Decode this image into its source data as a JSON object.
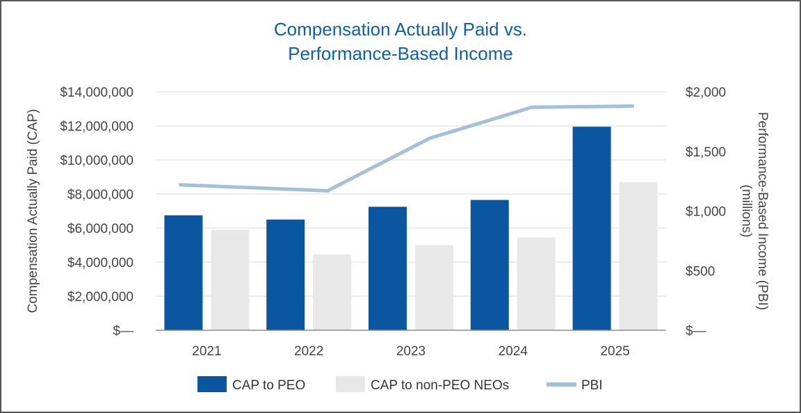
{
  "chart_data": {
    "type": "bar",
    "title_lines": [
      "Compensation Actually Paid vs.",
      "Performance-Based Income"
    ],
    "categories": [
      "2021",
      "2022",
      "2023",
      "2024",
      "2025"
    ],
    "series": [
      {
        "name": "CAP to PEO",
        "type": "bar",
        "axis": "left",
        "color": "#0a56a0",
        "values": [
          6750000,
          6500000,
          7250000,
          7650000,
          11950000
        ]
      },
      {
        "name": "CAP to non-PEO NEOs",
        "type": "bar",
        "axis": "left",
        "color": "#e8e8e8",
        "values": [
          5900000,
          4450000,
          5000000,
          5450000,
          8700000
        ]
      },
      {
        "name": "PBI",
        "type": "line",
        "axis": "right",
        "color": "#a3bfd9",
        "values": [
          1220,
          1170,
          1610,
          1870,
          1880
        ]
      }
    ],
    "ylabel": "Compensation Actually Paid (CAP)",
    "y2label_lines": [
      "Performance-Based Income (PBI)",
      "(millions)"
    ],
    "ylim": [
      0,
      14000000
    ],
    "y2lim": [
      0,
      2000
    ],
    "yticks": [
      0,
      2000000,
      4000000,
      6000000,
      8000000,
      10000000,
      12000000,
      14000000
    ],
    "ytick_labels": [
      "$—",
      "$2,000,000",
      "$4,000,000",
      "$6,000,000",
      "$8,000,000",
      "$10,000,000",
      "$12,000,000",
      "$14,000,000"
    ],
    "y2ticks": [
      0,
      500,
      1000,
      1500,
      2000
    ],
    "y2tick_labels": [
      "$—",
      "$500",
      "$1,000",
      "$1,500",
      "$2,000"
    ],
    "grid": true,
    "legend": "bottom"
  }
}
